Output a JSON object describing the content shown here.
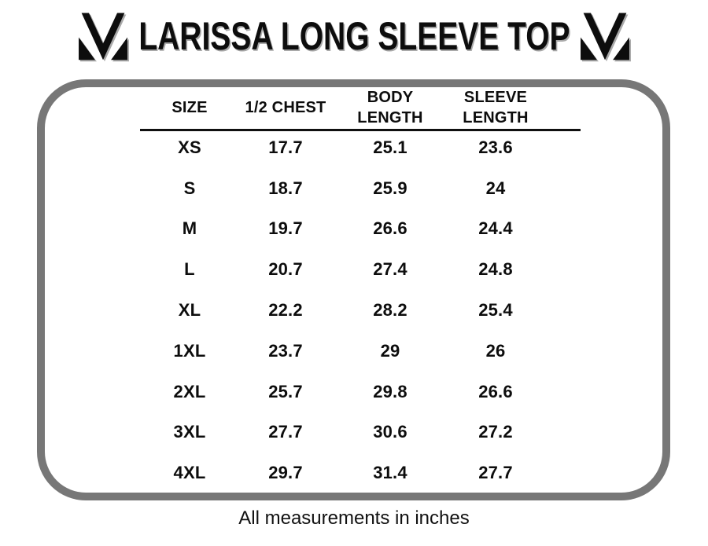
{
  "page": {
    "title": "LARISSA LONG SLEEVE TOP"
  },
  "icons": {
    "brand_logo": "m-monogram"
  },
  "colors": {
    "border": "#777777",
    "shadow": "#a9a9a9",
    "text": "#0d0d0d"
  },
  "table": {
    "columns": [
      "SIZE",
      "1/2 CHEST",
      "BODY\nLENGTH",
      "SLEEVE\nLENGTH"
    ],
    "rows": [
      [
        "XS",
        "17.7",
        "25.1",
        "23.6"
      ],
      [
        "S",
        "18.7",
        "25.9",
        "24"
      ],
      [
        "M",
        "19.7",
        "26.6",
        "24.4"
      ],
      [
        "L",
        "20.7",
        "27.4",
        "24.8"
      ],
      [
        "XL",
        "22.2",
        "28.2",
        "25.4"
      ],
      [
        "1XL",
        "23.7",
        "29",
        "26"
      ],
      [
        "2XL",
        "25.7",
        "29.8",
        "26.6"
      ],
      [
        "3XL",
        "27.7",
        "30.6",
        "27.2"
      ],
      [
        "4XL",
        "29.7",
        "31.4",
        "27.7"
      ]
    ]
  },
  "footer": {
    "note": "All measurements in inches"
  }
}
